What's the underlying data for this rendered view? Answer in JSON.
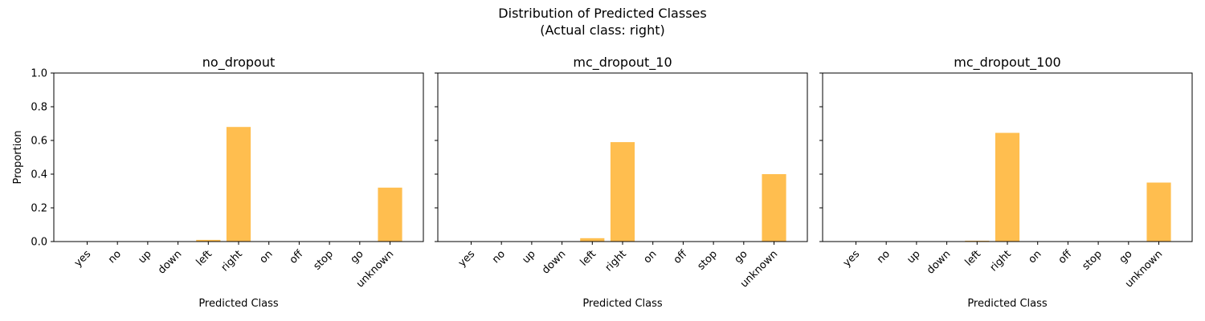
{
  "figure": {
    "title_line1": "Distribution of Predicted Classes",
    "title_line2": "(Actual class: right)"
  },
  "colors": {
    "bar": "#ffbe4f",
    "axis": "#000000",
    "background": "#ffffff"
  },
  "chart_data": [
    {
      "type": "bar",
      "title": "no_dropout",
      "xlabel": "Predicted Class",
      "ylabel": "Proportion",
      "ylim": [
        0,
        1
      ],
      "yticks": [
        "0.0",
        "0.2",
        "0.4",
        "0.6",
        "0.8",
        "1.0"
      ],
      "categories": [
        "yes",
        "no",
        "up",
        "down",
        "left",
        "right",
        "on",
        "off",
        "stop",
        "go",
        "unknown"
      ],
      "values": [
        0,
        0,
        0,
        0,
        0.01,
        0.68,
        0,
        0,
        0,
        0,
        0.32
      ],
      "grid": false
    },
    {
      "type": "bar",
      "title": "mc_dropout_10",
      "xlabel": "Predicted Class",
      "ylabel": "",
      "ylim": [
        0,
        1
      ],
      "yticks": [],
      "categories": [
        "yes",
        "no",
        "up",
        "down",
        "left",
        "right",
        "on",
        "off",
        "stop",
        "go",
        "unknown"
      ],
      "values": [
        0,
        0,
        0,
        0,
        0.02,
        0.59,
        0,
        0,
        0,
        0,
        0.4
      ],
      "grid": false
    },
    {
      "type": "bar",
      "title": "mc_dropout_100",
      "xlabel": "Predicted Class",
      "ylabel": "",
      "ylim": [
        0,
        1
      ],
      "yticks": [],
      "categories": [
        "yes",
        "no",
        "up",
        "down",
        "left",
        "right",
        "on",
        "off",
        "stop",
        "go",
        "unknown"
      ],
      "values": [
        0,
        0,
        0,
        0,
        0.005,
        0.645,
        0,
        0,
        0,
        0,
        0.35
      ],
      "grid": false
    }
  ]
}
